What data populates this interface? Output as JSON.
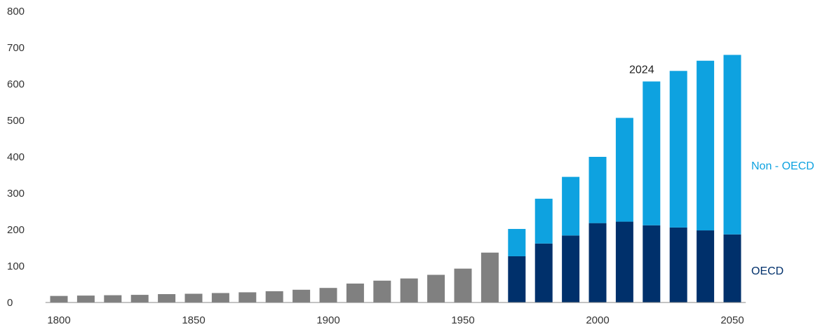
{
  "chart_data": {
    "type": "bar",
    "stacked": true,
    "x": [
      1800,
      1810,
      1820,
      1830,
      1840,
      1850,
      1860,
      1870,
      1880,
      1890,
      1900,
      1910,
      1920,
      1930,
      1940,
      1950,
      1960,
      1970,
      1980,
      1990,
      2000,
      2010,
      2020,
      2030,
      2040,
      2050
    ],
    "total": [
      18,
      19,
      20,
      21,
      23,
      24,
      26,
      28,
      31,
      35,
      40,
      52,
      60,
      66,
      76,
      93,
      137,
      null,
      null,
      null,
      null,
      null,
      null,
      null,
      null,
      null
    ],
    "series": [
      {
        "name": "OECD",
        "values": [
          null,
          null,
          null,
          null,
          null,
          null,
          null,
          null,
          null,
          null,
          null,
          null,
          null,
          null,
          null,
          null,
          null,
          127,
          162,
          184,
          218,
          222,
          212,
          206,
          198,
          187
        ]
      },
      {
        "name": "Non - OECD",
        "values": [
          null,
          null,
          null,
          null,
          null,
          null,
          null,
          null,
          null,
          null,
          null,
          null,
          null,
          null,
          null,
          null,
          null,
          75,
          123,
          161,
          182,
          285,
          395,
          430,
          466,
          493
        ]
      }
    ],
    "xticks": [
      1800,
      1850,
      1900,
      1950,
      2000,
      2050
    ],
    "yticks": [
      0,
      100,
      200,
      300,
      400,
      500,
      600,
      700,
      800
    ],
    "ylim": [
      0,
      800
    ],
    "xlim": [
      1795,
      2055
    ],
    "annotation": {
      "text": "2024",
      "x": 2020,
      "y": 607
    },
    "colors": {
      "historic": "#808080",
      "oecd": "#00306b",
      "non_oecd": "#0ea2e0",
      "axis": "#888888",
      "text": "#333333"
    },
    "legend": {
      "placement": "right",
      "entries": [
        "Non - OECD",
        "OECD"
      ]
    },
    "grid": false,
    "title": "",
    "xlabel": "",
    "ylabel": ""
  }
}
